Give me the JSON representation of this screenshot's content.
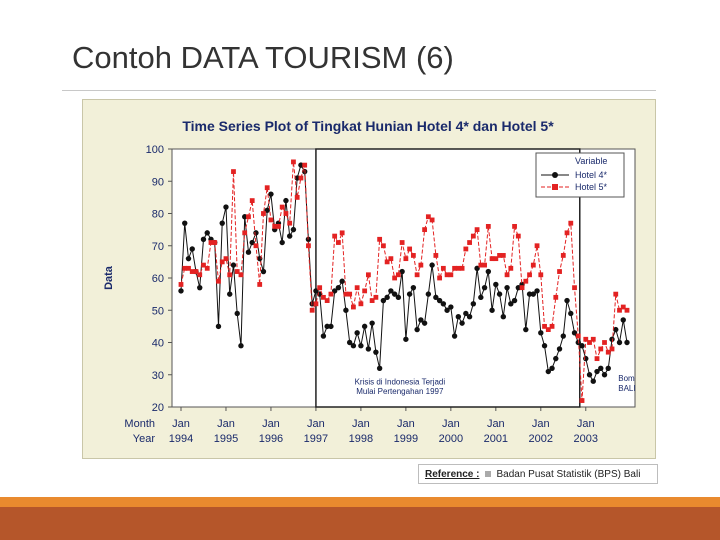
{
  "slide": {
    "title": "Contoh DATA TOURISM (6)"
  },
  "reference": {
    "label": "Reference :",
    "source": "Badan Pusat Statistik (BPS) Bali"
  },
  "colors": {
    "series_hotel4": "#111111",
    "series_hotel5": "#e32222",
    "plot_bg": "#ffffff",
    "frame_bg": "#f2f0d9",
    "title_color": "#1a2a6b",
    "footer_main": "#b5562a",
    "footer_thin": "#e98a2e"
  },
  "chart_data": {
    "type": "line",
    "title": "Time Series Plot of Tingkat Hunian Hotel 4* dan Hotel 5*",
    "ylabel": "Data",
    "ylim": [
      20,
      100
    ],
    "yticks": [
      20,
      30,
      40,
      50,
      60,
      70,
      80,
      90,
      100
    ],
    "x_row_labels": [
      "Month",
      "Year"
    ],
    "x_ticks": [
      {
        "month": "Jan",
        "year": "1994",
        "index": 0
      },
      {
        "month": "Jan",
        "year": "1995",
        "index": 12
      },
      {
        "month": "Jan",
        "year": "1996",
        "index": 24
      },
      {
        "month": "Jan",
        "year": "1997",
        "index": 36
      },
      {
        "month": "Jan",
        "year": "1998",
        "index": 48
      },
      {
        "month": "Jan",
        "year": "1999",
        "index": 60
      },
      {
        "month": "Jan",
        "year": "2000",
        "index": 72
      },
      {
        "month": "Jan",
        "year": "2001",
        "index": 84
      },
      {
        "month": "Jan",
        "year": "2002",
        "index": 96
      },
      {
        "month": "Jan",
        "year": "2003",
        "index": 108
      }
    ],
    "x_count": 120,
    "legend": {
      "title": "Variable",
      "position": "top-right"
    },
    "series": [
      {
        "name": "Hotel 4*",
        "marker": "circle",
        "values": [
          56,
          77,
          66,
          69,
          62,
          57,
          72,
          74,
          72,
          71,
          45,
          77,
          82,
          55,
          64,
          49,
          39,
          79,
          68,
          71,
          74,
          66,
          62,
          81,
          86,
          75,
          77,
          71,
          84,
          73,
          75,
          91,
          95,
          93,
          72,
          52,
          56,
          55,
          42,
          45,
          45,
          56,
          57,
          59,
          50,
          40,
          39,
          43,
          39,
          45,
          38,
          46,
          37,
          32,
          53,
          54,
          56,
          55,
          54,
          62,
          41,
          55,
          57,
          44,
          47,
          46,
          55,
          64,
          54,
          53,
          52,
          50,
          51,
          42,
          48,
          46,
          49,
          48,
          52,
          63,
          54,
          57,
          62,
          50,
          58,
          55,
          48,
          57,
          52,
          53,
          57,
          58,
          44,
          55,
          55,
          56,
          43,
          39,
          31,
          32,
          35,
          38,
          42,
          53,
          49,
          43,
          40,
          39,
          35,
          30,
          28,
          31,
          32,
          30,
          32,
          41,
          44,
          40,
          47,
          40
        ]
      },
      {
        "name": "Hotel 5*",
        "marker": "square",
        "values": [
          58,
          63,
          63,
          62,
          62,
          61,
          64,
          63,
          71,
          71,
          59,
          65,
          66,
          61,
          93,
          62,
          61,
          74,
          79,
          84,
          70,
          58,
          80,
          88,
          78,
          76,
          76,
          82,
          80,
          77,
          96,
          85,
          91,
          95,
          70,
          50,
          52,
          57,
          54,
          53,
          55,
          73,
          71,
          74,
          55,
          55,
          51,
          57,
          52,
          56,
          61,
          53,
          54,
          72,
          70,
          65,
          66,
          60,
          61,
          71,
          66,
          69,
          67,
          61,
          64,
          75,
          79,
          78,
          67,
          60,
          63,
          61,
          61,
          63,
          63,
          63,
          69,
          71,
          73,
          75,
          64,
          64,
          76,
          66,
          66,
          67,
          67,
          61,
          63,
          76,
          73,
          57,
          59,
          61,
          64,
          70,
          61,
          45,
          44,
          45,
          54,
          62,
          67,
          74,
          77,
          57,
          42,
          22,
          41,
          40,
          41,
          35,
          38,
          40,
          37,
          38,
          55,
          50,
          51,
          50
        ]
      }
    ],
    "annotations": [
      {
        "text": "Krisis di Indonesia Terjadi",
        "x_index": 60,
        "y": 27
      },
      {
        "text": "Mulai Pertengahan 1997",
        "x_index": 60,
        "y": 24
      },
      {
        "text": "Bom",
        "x_index": 114,
        "y": 28
      },
      {
        "text": "BALI",
        "x_index": 114,
        "y": 25
      }
    ]
  }
}
